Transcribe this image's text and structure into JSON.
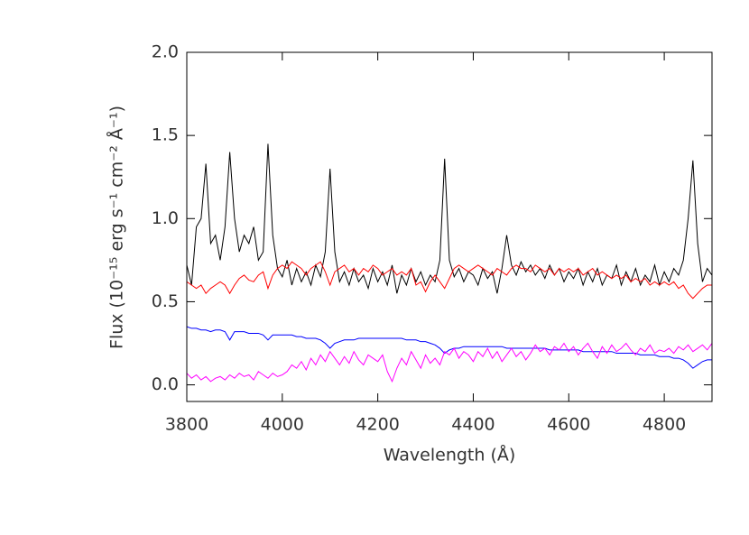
{
  "chart_data": {
    "type": "line",
    "xlabel": "Wavelength (Å)",
    "ylabel": "Flux (10⁻¹⁵ erg s⁻¹ cm⁻² Å⁻¹)",
    "xlim": [
      3800,
      4900
    ],
    "ylim": [
      -0.1,
      2.0
    ],
    "xticks": [
      3800,
      4000,
      4200,
      4400,
      4600,
      4800
    ],
    "yticks": [
      {
        "value": 0,
        "label": "0.0"
      },
      {
        "value": 0.5,
        "label": "0.5"
      },
      {
        "value": 1,
        "label": "1.0"
      },
      {
        "value": 1.5,
        "label": "1.5"
      },
      {
        "value": 2,
        "label": "2.0"
      }
    ],
    "x": [
      3800,
      3810,
      3820,
      3830,
      3840,
      3850,
      3860,
      3870,
      3880,
      3890,
      3900,
      3910,
      3920,
      3930,
      3940,
      3950,
      3960,
      3970,
      3980,
      3990,
      4000,
      4010,
      4020,
      4030,
      4040,
      4050,
      4060,
      4070,
      4080,
      4090,
      4100,
      4110,
      4120,
      4130,
      4140,
      4150,
      4160,
      4170,
      4180,
      4190,
      4200,
      4210,
      4220,
      4230,
      4240,
      4250,
      4260,
      4270,
      4280,
      4290,
      4300,
      4310,
      4320,
      4330,
      4340,
      4350,
      4360,
      4370,
      4380,
      4390,
      4400,
      4410,
      4420,
      4430,
      4440,
      4450,
      4460,
      4470,
      4480,
      4490,
      4500,
      4510,
      4520,
      4530,
      4540,
      4550,
      4560,
      4570,
      4580,
      4590,
      4600,
      4610,
      4620,
      4630,
      4640,
      4650,
      4660,
      4670,
      4680,
      4690,
      4700,
      4710,
      4720,
      4730,
      4740,
      4750,
      4760,
      4770,
      4780,
      4790,
      4800,
      4810,
      4820,
      4830,
      4840,
      4850,
      4860,
      4870,
      4880,
      4890,
      4900
    ],
    "series": [
      {
        "color": "#000000",
        "values": [
          0.72,
          0.6,
          0.95,
          1.0,
          1.33,
          0.85,
          0.9,
          0.75,
          0.95,
          1.4,
          1.0,
          0.8,
          0.9,
          0.85,
          0.95,
          0.75,
          0.8,
          1.45,
          0.9,
          0.7,
          0.65,
          0.75,
          0.6,
          0.7,
          0.62,
          0.68,
          0.6,
          0.72,
          0.65,
          0.8,
          1.3,
          0.8,
          0.62,
          0.68,
          0.6,
          0.7,
          0.62,
          0.66,
          0.58,
          0.7,
          0.62,
          0.68,
          0.6,
          0.72,
          0.55,
          0.66,
          0.6,
          0.7,
          0.62,
          0.68,
          0.6,
          0.66,
          0.62,
          0.75,
          1.36,
          0.75,
          0.65,
          0.7,
          0.62,
          0.68,
          0.66,
          0.6,
          0.7,
          0.64,
          0.68,
          0.55,
          0.7,
          0.9,
          0.72,
          0.66,
          0.74,
          0.68,
          0.72,
          0.66,
          0.7,
          0.64,
          0.72,
          0.66,
          0.7,
          0.62,
          0.68,
          0.64,
          0.7,
          0.6,
          0.68,
          0.62,
          0.7,
          0.6,
          0.66,
          0.64,
          0.72,
          0.6,
          0.68,
          0.62,
          0.7,
          0.6,
          0.66,
          0.62,
          0.72,
          0.6,
          0.68,
          0.62,
          0.7,
          0.66,
          0.75,
          1.0,
          1.35,
          0.85,
          0.62,
          0.7,
          0.66
        ]
      },
      {
        "color": "#ff0000",
        "values": [
          0.62,
          0.6,
          0.58,
          0.6,
          0.55,
          0.58,
          0.6,
          0.62,
          0.6,
          0.55,
          0.6,
          0.64,
          0.66,
          0.63,
          0.62,
          0.66,
          0.68,
          0.58,
          0.66,
          0.7,
          0.72,
          0.7,
          0.74,
          0.72,
          0.7,
          0.66,
          0.7,
          0.72,
          0.74,
          0.68,
          0.6,
          0.68,
          0.7,
          0.72,
          0.68,
          0.7,
          0.66,
          0.7,
          0.68,
          0.72,
          0.7,
          0.66,
          0.68,
          0.7,
          0.66,
          0.68,
          0.66,
          0.7,
          0.6,
          0.62,
          0.56,
          0.62,
          0.66,
          0.62,
          0.58,
          0.64,
          0.7,
          0.72,
          0.7,
          0.68,
          0.7,
          0.72,
          0.7,
          0.68,
          0.66,
          0.7,
          0.68,
          0.66,
          0.7,
          0.72,
          0.7,
          0.7,
          0.68,
          0.72,
          0.7,
          0.68,
          0.7,
          0.66,
          0.7,
          0.68,
          0.7,
          0.68,
          0.7,
          0.66,
          0.68,
          0.7,
          0.66,
          0.68,
          0.66,
          0.64,
          0.66,
          0.64,
          0.66,
          0.62,
          0.64,
          0.62,
          0.64,
          0.6,
          0.62,
          0.6,
          0.62,
          0.6,
          0.62,
          0.58,
          0.6,
          0.55,
          0.52,
          0.55,
          0.58,
          0.6,
          0.6
        ]
      },
      {
        "color": "#0000ff",
        "values": [
          0.35,
          0.34,
          0.34,
          0.33,
          0.33,
          0.32,
          0.33,
          0.33,
          0.32,
          0.27,
          0.32,
          0.32,
          0.32,
          0.31,
          0.31,
          0.31,
          0.3,
          0.27,
          0.3,
          0.3,
          0.3,
          0.3,
          0.3,
          0.29,
          0.29,
          0.28,
          0.28,
          0.28,
          0.27,
          0.25,
          0.22,
          0.25,
          0.26,
          0.27,
          0.27,
          0.27,
          0.28,
          0.28,
          0.28,
          0.28,
          0.28,
          0.28,
          0.28,
          0.28,
          0.28,
          0.28,
          0.27,
          0.27,
          0.27,
          0.26,
          0.26,
          0.25,
          0.24,
          0.22,
          0.19,
          0.21,
          0.22,
          0.22,
          0.23,
          0.23,
          0.23,
          0.23,
          0.23,
          0.23,
          0.23,
          0.23,
          0.23,
          0.22,
          0.22,
          0.22,
          0.22,
          0.22,
          0.22,
          0.22,
          0.22,
          0.22,
          0.21,
          0.21,
          0.21,
          0.21,
          0.21,
          0.21,
          0.21,
          0.2,
          0.2,
          0.2,
          0.2,
          0.2,
          0.2,
          0.2,
          0.19,
          0.19,
          0.19,
          0.19,
          0.19,
          0.18,
          0.18,
          0.18,
          0.18,
          0.17,
          0.17,
          0.17,
          0.16,
          0.16,
          0.15,
          0.13,
          0.1,
          0.12,
          0.14,
          0.15,
          0.15
        ]
      },
      {
        "color": "#ff00ff",
        "values": [
          0.07,
          0.04,
          0.06,
          0.03,
          0.05,
          0.02,
          0.04,
          0.05,
          0.03,
          0.06,
          0.04,
          0.07,
          0.05,
          0.06,
          0.03,
          0.08,
          0.06,
          0.04,
          0.07,
          0.05,
          0.06,
          0.08,
          0.12,
          0.1,
          0.14,
          0.09,
          0.16,
          0.12,
          0.18,
          0.14,
          0.2,
          0.16,
          0.12,
          0.17,
          0.13,
          0.2,
          0.15,
          0.12,
          0.18,
          0.16,
          0.14,
          0.18,
          0.08,
          0.02,
          0.1,
          0.16,
          0.12,
          0.2,
          0.15,
          0.1,
          0.18,
          0.13,
          0.16,
          0.12,
          0.2,
          0.18,
          0.22,
          0.16,
          0.2,
          0.18,
          0.14,
          0.2,
          0.17,
          0.22,
          0.16,
          0.2,
          0.14,
          0.18,
          0.22,
          0.17,
          0.2,
          0.15,
          0.19,
          0.24,
          0.2,
          0.22,
          0.18,
          0.23,
          0.21,
          0.25,
          0.2,
          0.23,
          0.18,
          0.22,
          0.25,
          0.2,
          0.16,
          0.23,
          0.19,
          0.24,
          0.2,
          0.22,
          0.25,
          0.21,
          0.18,
          0.22,
          0.2,
          0.24,
          0.19,
          0.21,
          0.2,
          0.22,
          0.19,
          0.23,
          0.21,
          0.24,
          0.2,
          0.22,
          0.24,
          0.21,
          0.25
        ]
      }
    ]
  }
}
